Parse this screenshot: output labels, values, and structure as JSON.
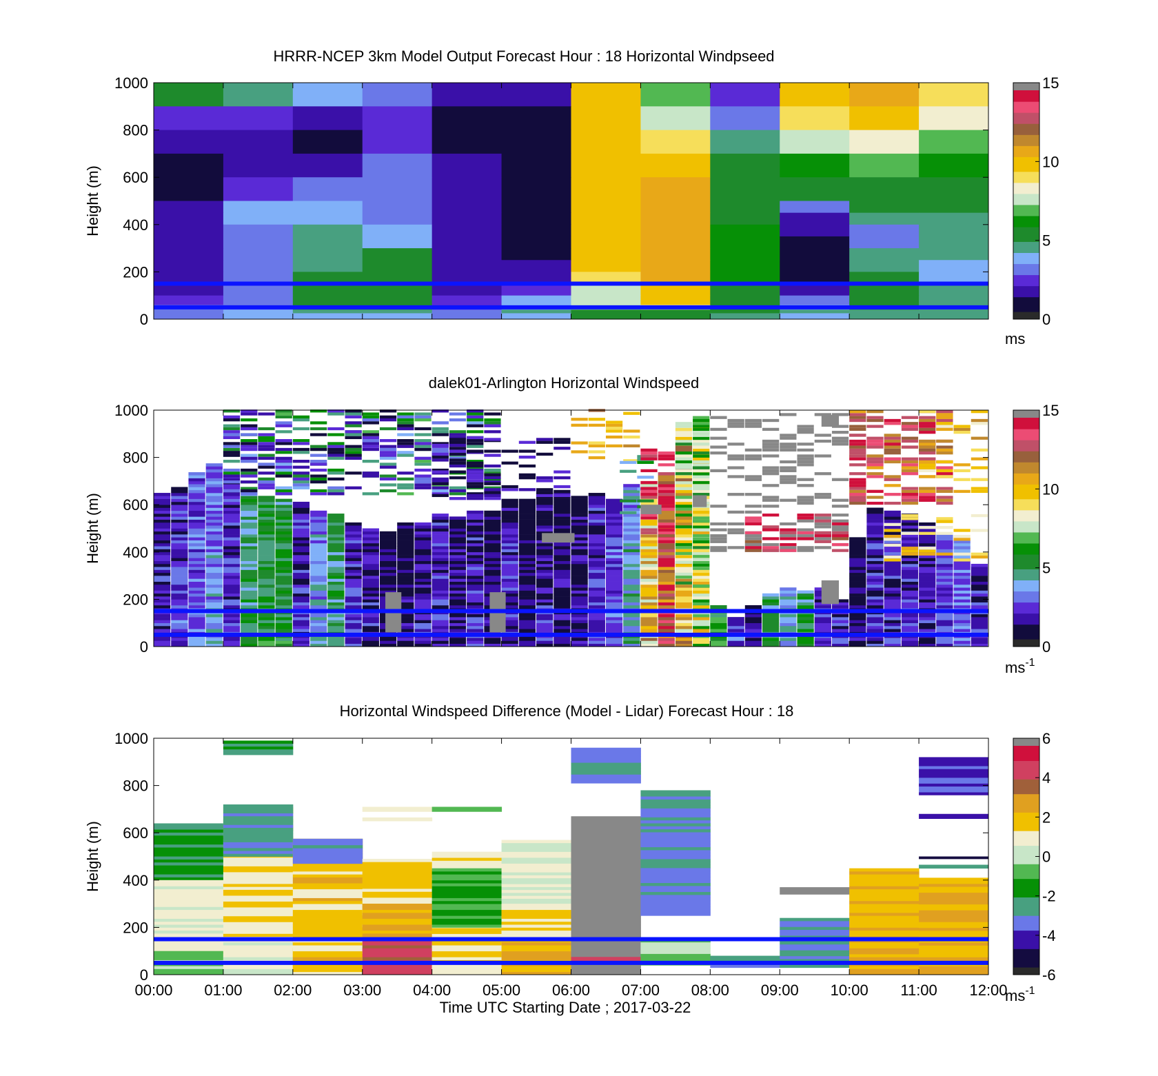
{
  "figure": {
    "xlabel": "Time UTC  Starting Date ; 2017-03-22",
    "x_ticks": [
      "00:00",
      "01:00",
      "02:00",
      "03:00",
      "04:00",
      "05:00",
      "06:00",
      "07:00",
      "08:00",
      "09:00",
      "10:00",
      "11:00",
      "12:00"
    ],
    "reference_lines_m": [
      150,
      50
    ],
    "reference_line_color": "#0a14ff"
  },
  "colorscale": {
    "speed": [
      "#2a2a2a",
      "#120c3c",
      "#3a10a8",
      "#5a2ad6",
      "#6a78e8",
      "#80b0f8",
      "#48a080",
      "#1e8a2c",
      "#069006",
      "#52b852",
      "#c8e6c8",
      "#f2eed0",
      "#f6de5a",
      "#f0c000",
      "#e8a818",
      "#c0882e",
      "#98603c",
      "#c05068",
      "#ec4c74",
      "#d0103c",
      "#888888"
    ],
    "diff": [
      "#2a2a2a",
      "#140c40",
      "#3a10a8",
      "#6a78e8",
      "#48a080",
      "#069006",
      "#52b852",
      "#c8e6c8",
      "#f2eed0",
      "#f0c000",
      "#e0a020",
      "#a0603a",
      "#d04060",
      "#d0103c",
      "#888888"
    ]
  },
  "chart_data": [
    {
      "type": "heatmap",
      "title": "HRRR-NCEP 3km Model Output   Forecast Hour : 18 Horizontal Windpseed",
      "xlabel": "",
      "ylabel": "Height (m)",
      "ylim": [
        0,
        1000
      ],
      "y_ticks": [
        "0",
        "200",
        "400",
        "600",
        "800",
        "1000"
      ],
      "colorbar": {
        "ticks": [
          "0",
          "5",
          "10",
          "15"
        ],
        "range": [
          0,
          15
        ],
        "unit": "ms",
        "unit_sup": ""
      },
      "time_hours": [
        0,
        1,
        2,
        3,
        4,
        5,
        6,
        7,
        8,
        9,
        10,
        11,
        12
      ],
      "levels_m": [
        1000,
        900,
        800,
        700,
        600,
        500,
        450,
        400,
        350,
        300,
        250,
        200,
        150,
        100,
        60,
        40,
        25,
        0
      ],
      "values": [
        [
          5.5,
          4.0,
          3.5,
          3.0,
          1.0,
          1.0,
          9.5,
          6.5,
          2.0,
          9.5,
          10.5,
          9.0
        ],
        [
          2.0,
          2.0,
          1.5,
          2.0,
          0.5,
          0.5,
          9.5,
          7.5,
          3.0,
          9.0,
          9.5,
          8.5
        ],
        [
          1.0,
          1.5,
          0.5,
          2.0,
          0.5,
          0.5,
          9.5,
          9.0,
          4.2,
          7.2,
          8.5,
          7.0
        ],
        [
          0.1,
          1.5,
          1.5,
          3.0,
          1.0,
          0.5,
          9.5,
          10.0,
          5.0,
          5.8,
          6.8,
          6.0
        ],
        [
          0.5,
          2.0,
          2.5,
          2.5,
          1.0,
          0.5,
          9.5,
          10.5,
          5.0,
          4.8,
          5.5,
          5.5
        ],
        [
          1.0,
          3.5,
          3.5,
          2.5,
          1.0,
          0.5,
          9.5,
          10.5,
          5.2,
          2.8,
          4.8,
          5.0
        ],
        [
          1.5,
          3.5,
          3.5,
          3.0,
          1.0,
          0.5,
          9.5,
          10.5,
          5.5,
          1.5,
          4.0,
          4.5
        ],
        [
          1.5,
          3.0,
          4.0,
          3.5,
          1.0,
          0.5,
          9.5,
          10.5,
          5.8,
          1.0,
          2.5,
          4.5
        ],
        [
          1.5,
          3.0,
          4.0,
          3.5,
          1.0,
          0.3,
          9.5,
          10.5,
          5.8,
          0.5,
          2.5,
          4.2
        ],
        [
          1.5,
          3.0,
          4.5,
          4.8,
          1.0,
          0.5,
          9.5,
          10.5,
          5.8,
          0.5,
          4.0,
          4.0
        ],
        [
          1.5,
          3.0,
          4.5,
          4.8,
          1.5,
          1.0,
          9.5,
          10.5,
          5.8,
          0.5,
          4.5,
          3.8
        ],
        [
          1.5,
          3.0,
          4.8,
          4.8,
          1.5,
          1.0,
          9.0,
          10.5,
          5.8,
          0.5,
          4.8,
          3.8
        ],
        [
          1.5,
          2.5,
          4.8,
          4.8,
          1.5,
          2.0,
          7.5,
          10.0,
          5.2,
          1.5,
          4.8,
          4.2
        ],
        [
          2.0,
          2.5,
          4.8,
          4.8,
          2.0,
          3.5,
          7.8,
          9.5,
          5.0,
          2.5,
          4.8,
          4.5
        ],
        [
          2.5,
          3.0,
          4.8,
          4.8,
          2.0,
          3.5,
          7.5,
          8.5,
          5.0,
          3.5,
          4.8,
          4.5
        ],
        [
          3.0,
          3.5,
          4.0,
          4.5,
          2.5,
          4.0,
          5.5,
          5.5,
          5.0,
          4.0,
          4.5,
          4.2
        ],
        [
          3.0,
          3.5,
          3.5,
          3.5,
          3.0,
          3.5,
          5.0,
          5.0,
          4.5,
          3.5,
          4.0,
          4.0
        ]
      ]
    },
    {
      "type": "heatmap",
      "title": "dalek01-Arlington  Horizontal Windspeed",
      "xlabel": "",
      "ylabel": "Height (m)",
      "ylim": [
        0,
        1000
      ],
      "y_ticks": [
        "0",
        "200",
        "400",
        "600",
        "800",
        "1000"
      ],
      "colorbar": {
        "ticks": [
          "0",
          "5",
          "10",
          "15"
        ],
        "range": [
          0,
          15
        ],
        "unit": "ms",
        "unit_sup": "-1"
      },
      "time_hours": [
        0,
        1,
        2,
        3,
        4,
        5,
        6,
        7,
        8,
        9,
        10,
        11,
        12
      ],
      "profiles": [
        {
          "t": 0.0,
          "top": 650,
          "base": 1.8
        },
        {
          "t": 0.25,
          "top": 680,
          "base": 2.2
        },
        {
          "t": 0.5,
          "top": 740,
          "base": 3.0
        },
        {
          "t": 0.75,
          "top": 780,
          "base": 3.2
        },
        {
          "t": 1.0,
          "top": 720,
          "base": 2.0
        },
        {
          "t": 1.25,
          "top": 680,
          "base": 5.0
        },
        {
          "t": 1.5,
          "top": 640,
          "base": 5.5
        },
        {
          "t": 1.75,
          "top": 620,
          "base": 5.5
        },
        {
          "t": 2.0,
          "top": 610,
          "base": 2.0
        },
        {
          "t": 2.25,
          "top": 580,
          "base": 3.5
        },
        {
          "t": 2.5,
          "top": 560,
          "base": 5.0
        },
        {
          "t": 2.75,
          "top": 530,
          "base": 2.0
        },
        {
          "t": 3.0,
          "top": 500,
          "base": 1.5
        },
        {
          "t": 3.25,
          "top": 490,
          "base": 0.8
        },
        {
          "t": 3.5,
          "top": 520,
          "base": 0.8
        },
        {
          "t": 3.75,
          "top": 530,
          "base": 1.5
        },
        {
          "t": 4.0,
          "top": 560,
          "base": 1.8
        },
        {
          "t": 4.25,
          "top": 550,
          "base": 1.0
        },
        {
          "t": 4.5,
          "top": 570,
          "base": 1.8
        },
        {
          "t": 4.75,
          "top": 580,
          "base": 0.8
        },
        {
          "t": 5.0,
          "top": 620,
          "base": 1.8
        },
        {
          "t": 5.25,
          "top": 630,
          "base": 0.5
        },
        {
          "t": 5.5,
          "top": 650,
          "base": 1.5
        },
        {
          "t": 5.75,
          "top": 660,
          "base": 0.8
        },
        {
          "t": 6.0,
          "top": 640,
          "base": 1.2
        },
        {
          "t": 6.25,
          "top": 650,
          "base": 2.0
        },
        {
          "t": 6.5,
          "top": 620,
          "base": 2.5
        },
        {
          "t": 6.75,
          "top": 690,
          "base": 4.0
        },
        {
          "t": 7.0,
          "top": 700,
          "base": 9.5
        },
        {
          "t": 7.25,
          "top": 740,
          "base": 13.0
        },
        {
          "t": 7.5,
          "top": 920,
          "base": 10.0
        },
        {
          "t": 7.75,
          "top": 970,
          "base": 8.0
        },
        {
          "t": 8.0,
          "top": 180,
          "base": 6.0
        },
        {
          "t": 8.25,
          "top": 130,
          "base": 2.5
        },
        {
          "t": 8.5,
          "top": 180,
          "base": 1.0
        },
        {
          "t": 8.75,
          "top": 220,
          "base": 5.0
        },
        {
          "t": 9.0,
          "top": 250,
          "base": 4.0
        },
        {
          "t": 9.25,
          "top": 240,
          "base": 5.5
        },
        {
          "t": 9.5,
          "top": 250,
          "base": 1.8
        },
        {
          "t": 9.75,
          "top": 200,
          "base": 2.0
        },
        {
          "t": 10.0,
          "top": 460,
          "base": 0.8
        },
        {
          "t": 10.25,
          "top": 590,
          "base": 1.8
        },
        {
          "t": 10.5,
          "top": 580,
          "base": 1.8
        },
        {
          "t": 10.75,
          "top": 560,
          "base": 1.8
        },
        {
          "t": 11.0,
          "top": 530,
          "base": 1.5
        },
        {
          "t": 11.25,
          "top": 480,
          "base": 2.5
        },
        {
          "t": 11.5,
          "top": 450,
          "base": 3.0
        },
        {
          "t": 11.75,
          "top": 350,
          "base": 2.0
        }
      ],
      "layers": [
        {
          "t0": 1.0,
          "t1": 4.8,
          "h0": 640,
          "h1": 1000,
          "v": 5.0
        },
        {
          "t0": 1.0,
          "t1": 4.8,
          "h0": 640,
          "h1": 1000,
          "v": 1.5
        },
        {
          "t0": 4.0,
          "t1": 6.0,
          "h0": 620,
          "h1": 880,
          "v": 0.8
        },
        {
          "t0": 6.0,
          "t1": 7.0,
          "h0": 780,
          "h1": 1000,
          "v": 10.5
        },
        {
          "t0": 6.7,
          "t1": 7.0,
          "h0": 560,
          "h1": 800,
          "v": 5.0
        },
        {
          "t0": 7.0,
          "t1": 7.5,
          "h0": 400,
          "h1": 830,
          "v": 14.0
        },
        {
          "t0": 7.5,
          "t1": 8.0,
          "h0": 250,
          "h1": 1000,
          "v": 6.5
        },
        {
          "t0": 8.0,
          "t1": 10.0,
          "h0": 400,
          "h1": 1000,
          "v": 20.0
        },
        {
          "t0": 8.5,
          "t1": 10.0,
          "h0": 400,
          "h1": 560,
          "v": 14.0
        },
        {
          "t0": 10.0,
          "t1": 11.5,
          "h0": 600,
          "h1": 1000,
          "v": 12.0
        },
        {
          "t0": 10.0,
          "t1": 11.5,
          "h0": 600,
          "h1": 1000,
          "v": 14.0
        },
        {
          "t0": 11.0,
          "t1": 12.0,
          "h0": 650,
          "h1": 1000,
          "v": 10.0
        },
        {
          "t0": 10.5,
          "t1": 12.0,
          "h0": 360,
          "h1": 560,
          "v": 9.5
        }
      ],
      "gray_blocks": [
        {
          "t0": 3.33,
          "t1": 3.56,
          "h0": 60,
          "h1": 230,
          "v": 20.0
        },
        {
          "t0": 4.83,
          "t1": 5.06,
          "h0": 60,
          "h1": 230,
          "v": 20.0
        },
        {
          "t0": 5.58,
          "t1": 6.05,
          "h0": 440,
          "h1": 480,
          "v": 20.0
        },
        {
          "t0": 7.0,
          "t1": 7.3,
          "h0": 560,
          "h1": 600,
          "v": 20.0
        },
        {
          "t0": 7.75,
          "t1": 7.95,
          "h0": 590,
          "h1": 640,
          "v": 20.0
        },
        {
          "t0": 9.6,
          "t1": 9.85,
          "h0": 180,
          "h1": 280,
          "v": 20.0
        },
        {
          "t0": 9.6,
          "t1": 9.85,
          "h0": 930,
          "h1": 980,
          "v": 20.0
        }
      ]
    },
    {
      "type": "heatmap",
      "title": "Horizontal Windspeed Difference (Model - Lidar) Forecast Hour : 18",
      "xlabel": "Time UTC  Starting Date ; 2017-03-22",
      "ylabel": "Height (m)",
      "ylim": [
        0,
        1000
      ],
      "y_ticks": [
        "0",
        "200",
        "400",
        "600",
        "800",
        "1000"
      ],
      "colorbar": {
        "ticks": [
          "-6",
          "-4",
          "-2",
          "0",
          "2",
          "4",
          "6"
        ],
        "range": [
          -6,
          6
        ],
        "unit": "ms",
        "unit_sup": "-1"
      },
      "time_hours": [
        0,
        1,
        2,
        3,
        4,
        5,
        6,
        7,
        8,
        9,
        10,
        11,
        12
      ],
      "columns": [
        {
          "t": 0,
          "segments": [
            [
              0,
              640,
              0.6
            ],
            [
              400,
              640,
              -2.0
            ],
            [
              100,
              400,
              0.8
            ],
            [
              0,
              100,
              -0.6
            ]
          ]
        },
        {
          "t": 1,
          "segments": [
            [
              0,
              720,
              1.2
            ],
            [
              500,
              720,
              -3.0
            ],
            [
              0,
              150,
              0.3
            ],
            [
              930,
              990,
              -2.5
            ]
          ]
        },
        {
          "t": 2,
          "segments": [
            [
              0,
              575,
              1.8
            ],
            [
              470,
              575,
              -3.2
            ],
            [
              0,
              150,
              1.8
            ]
          ]
        },
        {
          "t": 3,
          "segments": [
            [
              0,
              490,
              1.5
            ],
            [
              150,
              300,
              2.6
            ],
            [
              0,
              150,
              4.5
            ],
            [
              690,
              710,
              1.2
            ],
            [
              650,
              665,
              1.2
            ]
          ]
        },
        {
          "t": 4,
          "segments": [
            [
              0,
              520,
              1.4
            ],
            [
              200,
              450,
              -1.5
            ],
            [
              0,
              150,
              1.3
            ],
            [
              690,
              710,
              -1.2
            ]
          ]
        },
        {
          "t": 5,
          "segments": [
            [
              0,
              570,
              0.4
            ],
            [
              150,
              300,
              1.2
            ],
            [
              0,
              150,
              2.6
            ]
          ]
        },
        {
          "t": 6,
          "segments": [
            [
              0,
              670,
              20.0
            ],
            [
              810,
              960,
              -3.5
            ],
            [
              50,
              75,
              5.0
            ]
          ]
        },
        {
          "t": 7,
          "segments": [
            [
              250,
              780,
              -3.4
            ],
            [
              40,
              150,
              -0.5
            ]
          ]
        },
        {
          "t": 8,
          "segments": [
            [
              30,
              80,
              -3.0
            ]
          ]
        },
        {
          "t": 9,
          "segments": [
            [
              30,
              240,
              -3.0
            ],
            [
              340,
              370,
              20.0
            ]
          ]
        },
        {
          "t": 10,
          "segments": [
            [
              0,
              450,
              2.0
            ],
            [
              0,
              150,
              2.5
            ]
          ]
        },
        {
          "t": 11,
          "segments": [
            [
              0,
              410,
              2.2
            ],
            [
              760,
              920,
              -4.0
            ],
            [
              660,
              680,
              -4.0
            ],
            [
              490,
              500,
              -5.0
            ],
            [
              450,
              465,
              -3.0
            ]
          ]
        }
      ]
    }
  ]
}
